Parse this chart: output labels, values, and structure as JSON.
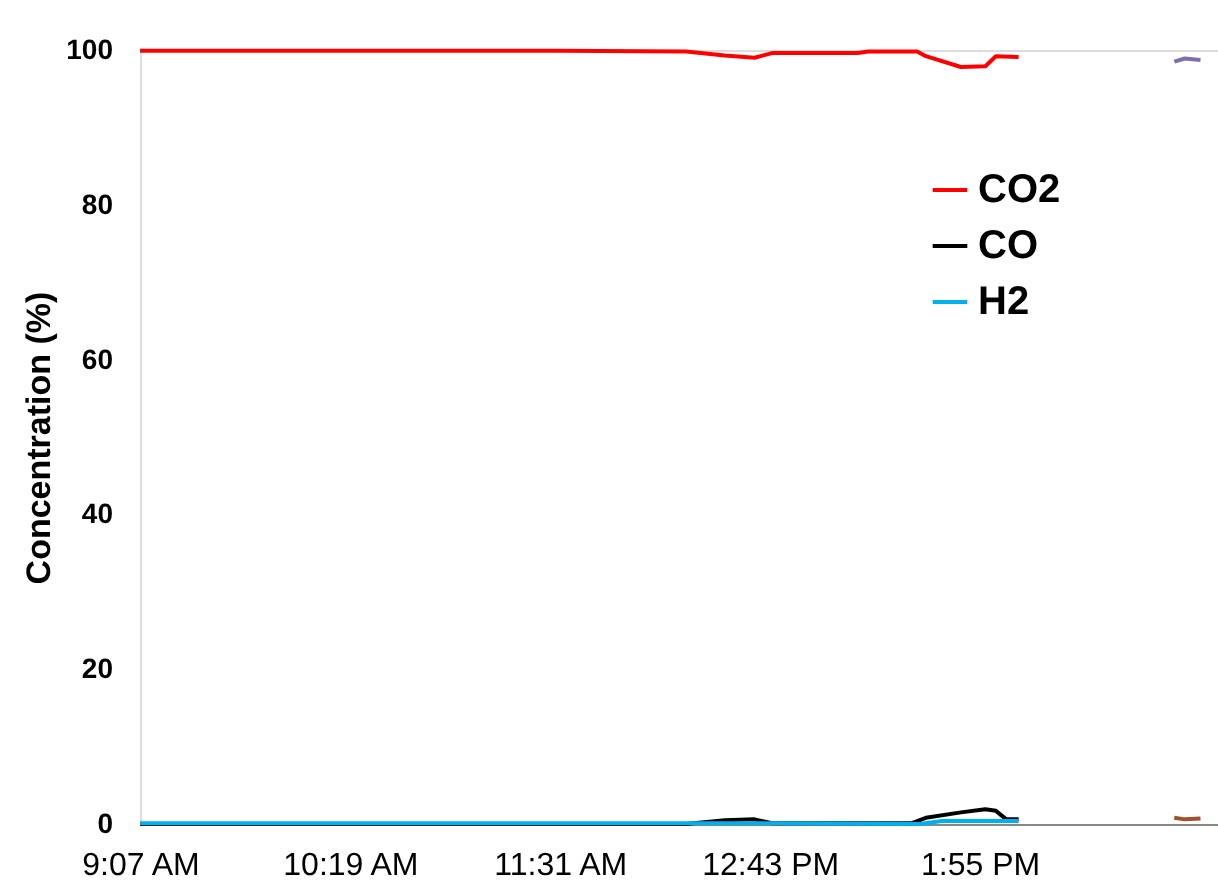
{
  "chart_data": {
    "type": "line",
    "ylabel": "Concentration (%)",
    "xlim": [
      9.1167,
      15.28
    ],
    "xticks": [
      {
        "value": 9.1167,
        "label": "9:07 AM"
      },
      {
        "value": 10.3167,
        "label": "10:19 AM"
      },
      {
        "value": 11.5167,
        "label": "11:31 AM"
      },
      {
        "value": 12.7167,
        "label": "12:43 PM"
      },
      {
        "value": 13.9167,
        "label": "1:55 PM"
      }
    ],
    "ylim": [
      0,
      100
    ],
    "yticks": [
      0,
      20,
      40,
      60,
      80,
      100
    ],
    "grid": false,
    "legend": "right",
    "marker": "none",
    "line_style": "solid",
    "series": [
      {
        "name": "CO2",
        "color": "#ff0000",
        "x": [
          9.117,
          10.28,
          11.5,
          12.24,
          12.46,
          12.63,
          12.73,
          13.22,
          13.28,
          13.56,
          13.61,
          13.81,
          13.95,
          14.01,
          14.14
        ],
        "values": [
          99.9,
          99.9,
          99.9,
          99.8,
          99.3,
          99.0,
          99.6,
          99.6,
          99.8,
          99.8,
          99.2,
          97.8,
          97.9,
          99.2,
          99.1
        ]
      },
      {
        "name": "CO",
        "color": "#000000",
        "x": [
          9.117,
          12.24,
          12.46,
          12.63,
          12.73,
          13.53,
          13.61,
          13.81,
          13.95,
          14.01,
          14.07,
          14.14
        ],
        "values": [
          0,
          0,
          0.5,
          0.6,
          0.1,
          0.1,
          0.8,
          1.5,
          1.9,
          1.7,
          0.6,
          0.6
        ]
      },
      {
        "name": "H2",
        "color": "#00b0f0",
        "x": [
          9.117,
          12.73,
          13.58,
          13.7,
          14.14
        ],
        "values": [
          0.1,
          0.1,
          0,
          0.4,
          0.4
        ]
      },
      {
        "color": "#7f6fa8",
        "x": [
          15.03,
          15.09,
          15.18
        ],
        "values": [
          98.5,
          98.9,
          98.7
        ]
      },
      {
        "color": "#a0522d",
        "x": [
          15.03,
          15.09,
          15.18
        ],
        "values": [
          0.8,
          0.6,
          0.7
        ]
      }
    ]
  }
}
